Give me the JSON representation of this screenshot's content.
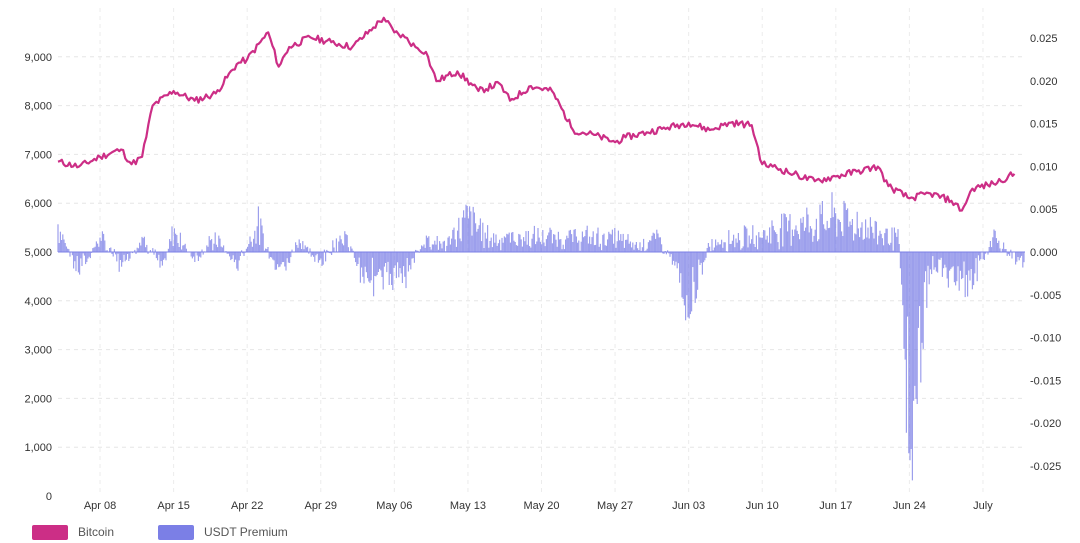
{
  "chart_data": {
    "type": "line",
    "title": "",
    "xlabel": "",
    "ylabel": "",
    "x_tick_labels": [
      "Apr 08",
      "Apr 15",
      "Apr 22",
      "Apr 29",
      "May 06",
      "May 13",
      "May 20",
      "May 27",
      "Jun 03",
      "Jun 10",
      "Jun 17",
      "Jun 24",
      "July"
    ],
    "y_left": {
      "ylim": [
        0,
        10000
      ],
      "tick_labels": [
        "0",
        "1,000",
        "2,000",
        "3,000",
        "4,000",
        "5,000",
        "6,000",
        "7,000",
        "8,000",
        "9,000"
      ]
    },
    "y_right": {
      "ylim": [
        -0.0285,
        0.0285
      ],
      "tick_labels": [
        "0.025",
        "0.020",
        "0.015",
        "0.010",
        "0.005",
        "0.000",
        "-0.005",
        "-0.010",
        "-0.015",
        "-0.020",
        "-0.025"
      ]
    },
    "grid": true,
    "legend_position": "bottom-left",
    "series": [
      {
        "name": "Bitcoin",
        "type": "line",
        "axis": "left",
        "color": "#cc2e86",
        "x": [
          "2018-04-04",
          "2018-04-06",
          "2018-04-08",
          "2018-04-10",
          "2018-04-11",
          "2018-04-12",
          "2018-04-13",
          "2018-04-15",
          "2018-04-17",
          "2018-04-19",
          "2018-04-21",
          "2018-04-22",
          "2018-04-24",
          "2018-04-25",
          "2018-04-26",
          "2018-04-28",
          "2018-04-30",
          "2018-05-02",
          "2018-05-04",
          "2018-05-05",
          "2018-05-06",
          "2018-05-07",
          "2018-05-08",
          "2018-05-09",
          "2018-05-10",
          "2018-05-12",
          "2018-05-14",
          "2018-05-16",
          "2018-05-17",
          "2018-05-19",
          "2018-05-21",
          "2018-05-23",
          "2018-05-25",
          "2018-05-27",
          "2018-05-28",
          "2018-05-30",
          "2018-06-01",
          "2018-06-03",
          "2018-06-05",
          "2018-06-07",
          "2018-06-09",
          "2018-06-10",
          "2018-06-11",
          "2018-06-13",
          "2018-06-15",
          "2018-06-17",
          "2018-06-19",
          "2018-06-21",
          "2018-06-22",
          "2018-06-24",
          "2018-06-26",
          "2018-06-28",
          "2018-06-29",
          "2018-06-30",
          "2018-07-02",
          "2018-07-04"
        ],
        "values": [
          6850,
          6750,
          6950,
          7100,
          6800,
          6950,
          8000,
          8300,
          8100,
          8250,
          8850,
          8950,
          9500,
          8800,
          9200,
          9400,
          9300,
          9200,
          9600,
          9800,
          9500,
          9400,
          9200,
          9100,
          8500,
          8700,
          8300,
          8450,
          8100,
          8400,
          8300,
          7500,
          7400,
          7250,
          7350,
          7450,
          7550,
          7650,
          7500,
          7650,
          7600,
          6800,
          6750,
          6600,
          6450,
          6550,
          6650,
          6750,
          6350,
          6100,
          6200,
          6050,
          5850,
          6300,
          6400,
          6600
        ]
      },
      {
        "name": "USDT Premium",
        "type": "area",
        "axis": "right",
        "color": "#7b7fe6",
        "x": [
          "2018-04-04",
          "2018-04-06",
          "2018-04-08",
          "2018-04-10",
          "2018-04-12",
          "2018-04-14",
          "2018-04-15",
          "2018-04-17",
          "2018-04-19",
          "2018-04-21",
          "2018-04-23",
          "2018-04-25",
          "2018-04-27",
          "2018-04-29",
          "2018-05-01",
          "2018-05-03",
          "2018-05-05",
          "2018-05-07",
          "2018-05-09",
          "2018-05-11",
          "2018-05-13",
          "2018-05-15",
          "2018-05-17",
          "2018-05-19",
          "2018-05-21",
          "2018-05-23",
          "2018-05-25",
          "2018-05-27",
          "2018-05-29",
          "2018-05-31",
          "2018-06-02",
          "2018-06-03",
          "2018-06-05",
          "2018-06-07",
          "2018-06-09",
          "2018-06-11",
          "2018-06-13",
          "2018-06-15",
          "2018-06-17",
          "2018-06-19",
          "2018-06-21",
          "2018-06-23",
          "2018-06-24",
          "2018-06-26",
          "2018-06-28",
          "2018-06-30",
          "2018-07-02",
          "2018-07-04"
        ],
        "values": [
          0.004,
          -0.003,
          0.002,
          -0.002,
          0.002,
          -0.002,
          0.003,
          -0.001,
          0.002,
          -0.002,
          0.004,
          -0.004,
          0.002,
          -0.002,
          0.003,
          -0.003,
          -0.004,
          -0.003,
          0.002,
          0.001,
          0.005,
          0.002,
          0.002,
          0.002,
          0.002,
          0.002,
          0.002,
          0.002,
          0.001,
          0.002,
          -0.002,
          -0.008,
          0.001,
          0.002,
          0.002,
          0.003,
          0.004,
          0.004,
          0.005,
          0.004,
          0.003,
          0.002,
          -0.025,
          -0.002,
          -0.003,
          -0.004,
          0.002,
          -0.001
        ]
      }
    ]
  }
}
